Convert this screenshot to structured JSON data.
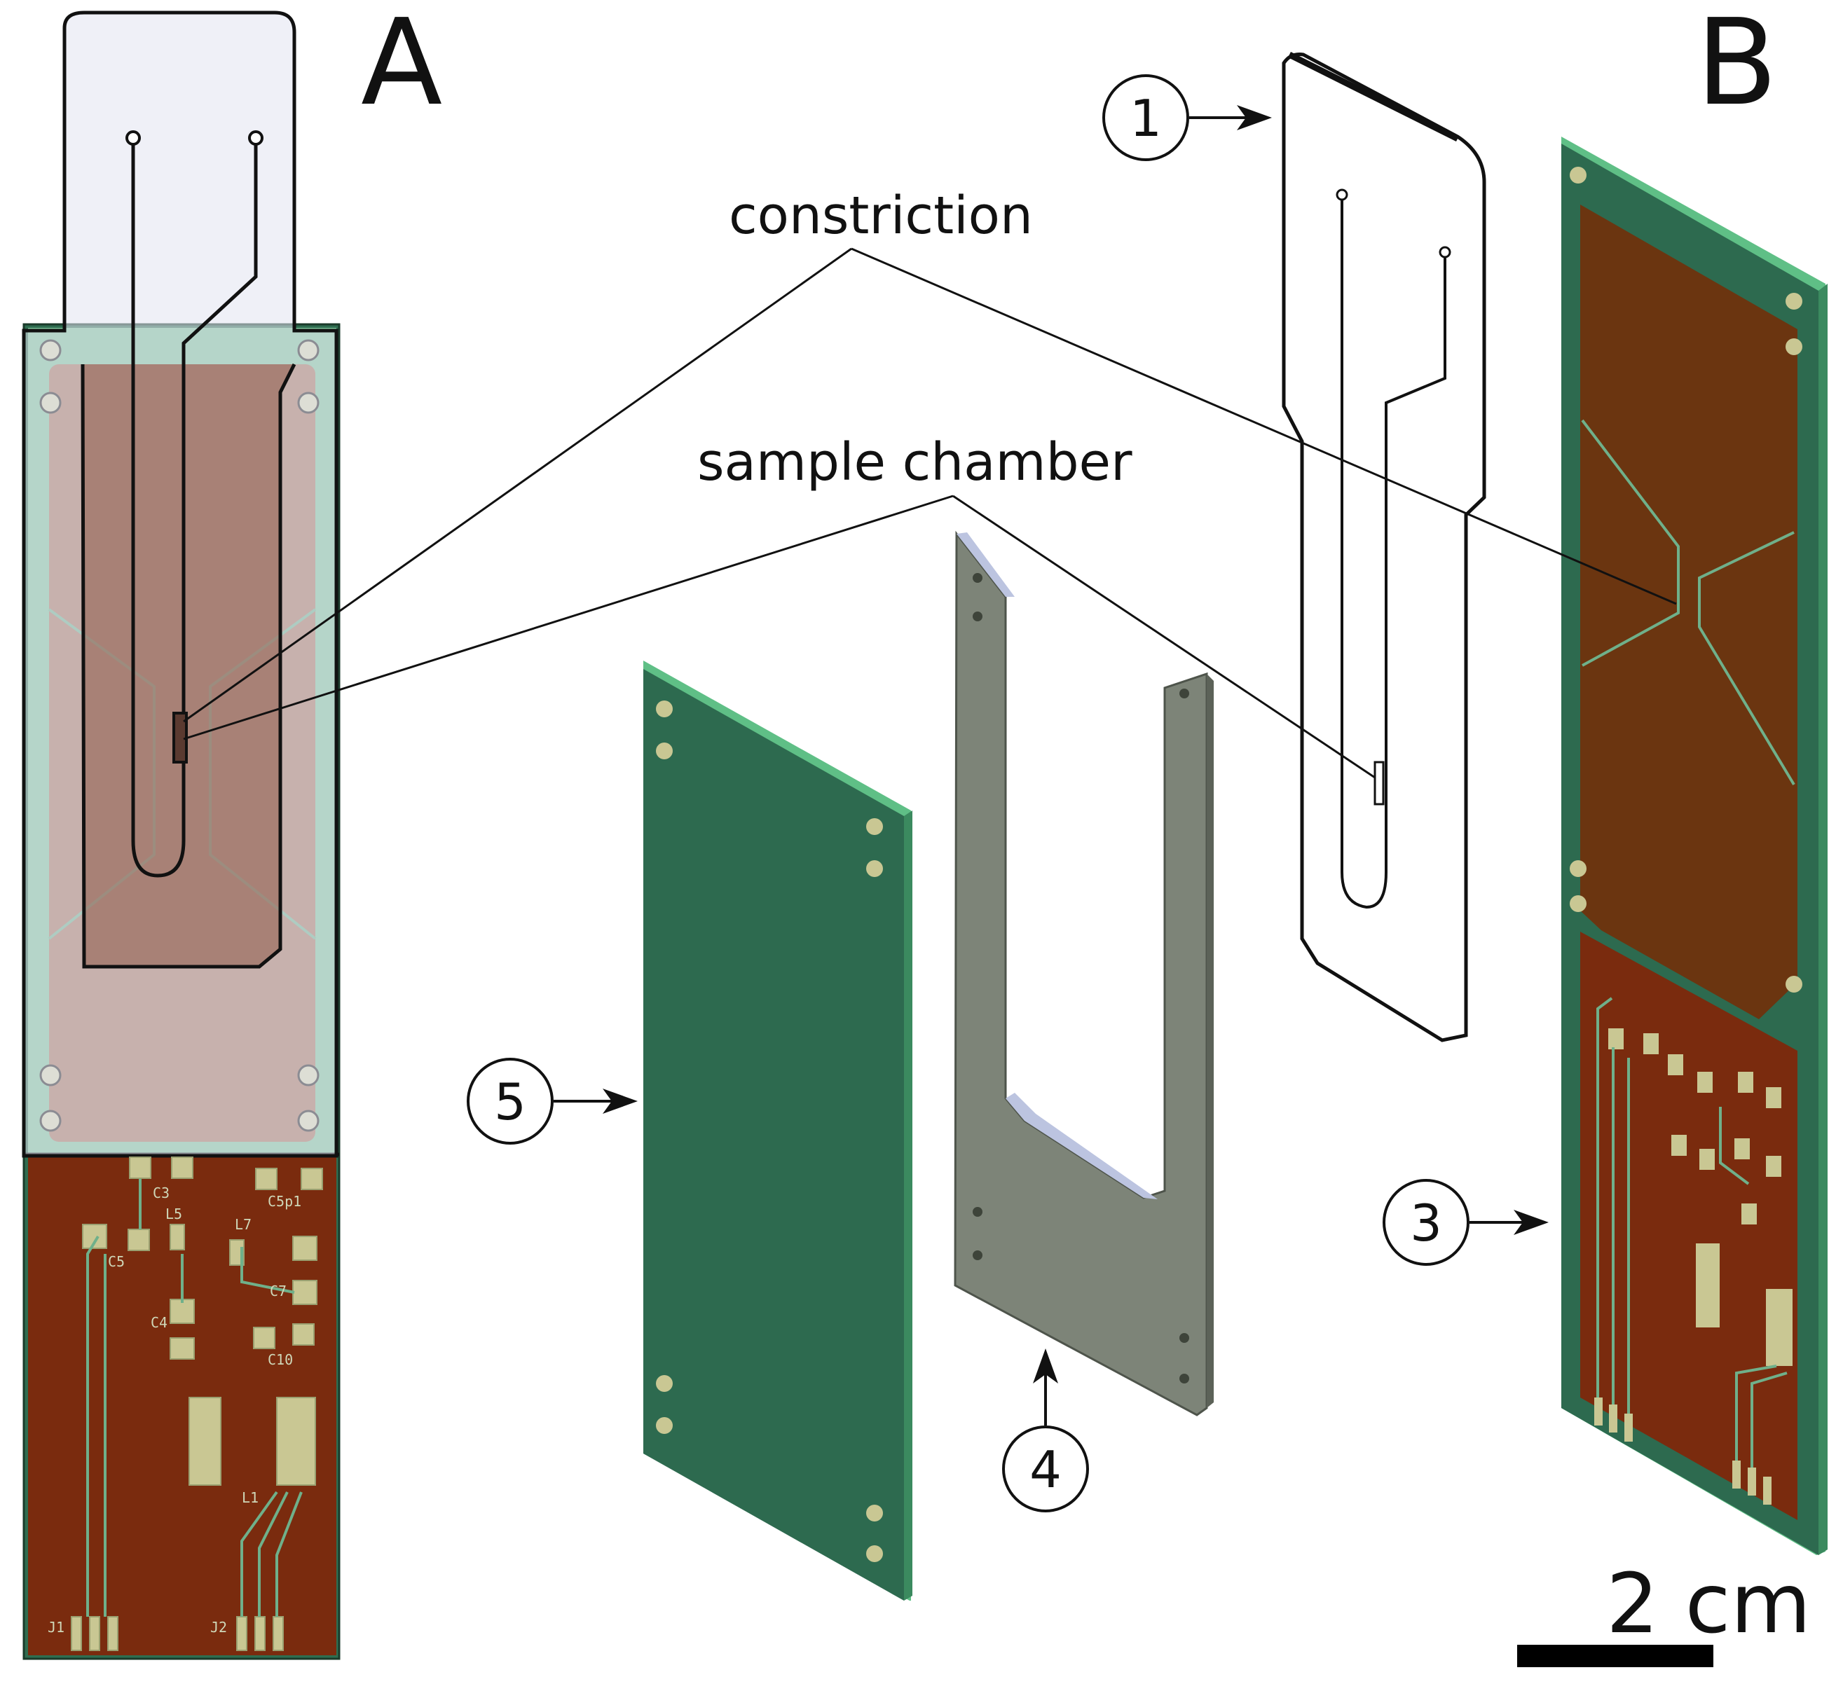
{
  "panels": {
    "a": "A",
    "b": "B"
  },
  "labels": {
    "constriction": "constriction",
    "sample_chamber": "sample chamber"
  },
  "parts": {
    "p1": "1",
    "p3": "3",
    "p4": "4",
    "p5": "5"
  },
  "scale_bar": {
    "text": "2 cm"
  },
  "silkscreen": {
    "c3": "C3",
    "l5": "L5",
    "c5p1": "C5p1",
    "c5": "C5",
    "l7": "L7",
    "c4": "C4",
    "c7": "C7",
    "c10": "C10",
    "l1": "L1",
    "j1": "J1",
    "j2": "J2"
  },
  "colors": {
    "pcb_copper": "#7a2b0e",
    "pcb_mask": "#2d6a4f",
    "pcb_edge": "#68c28d",
    "ground_plane": "#a7735b",
    "trace_green": "#6fb08a",
    "pad": "#c9c793",
    "spacer_gray": "#7d8478",
    "lid_fill": "#e2e4f0"
  }
}
